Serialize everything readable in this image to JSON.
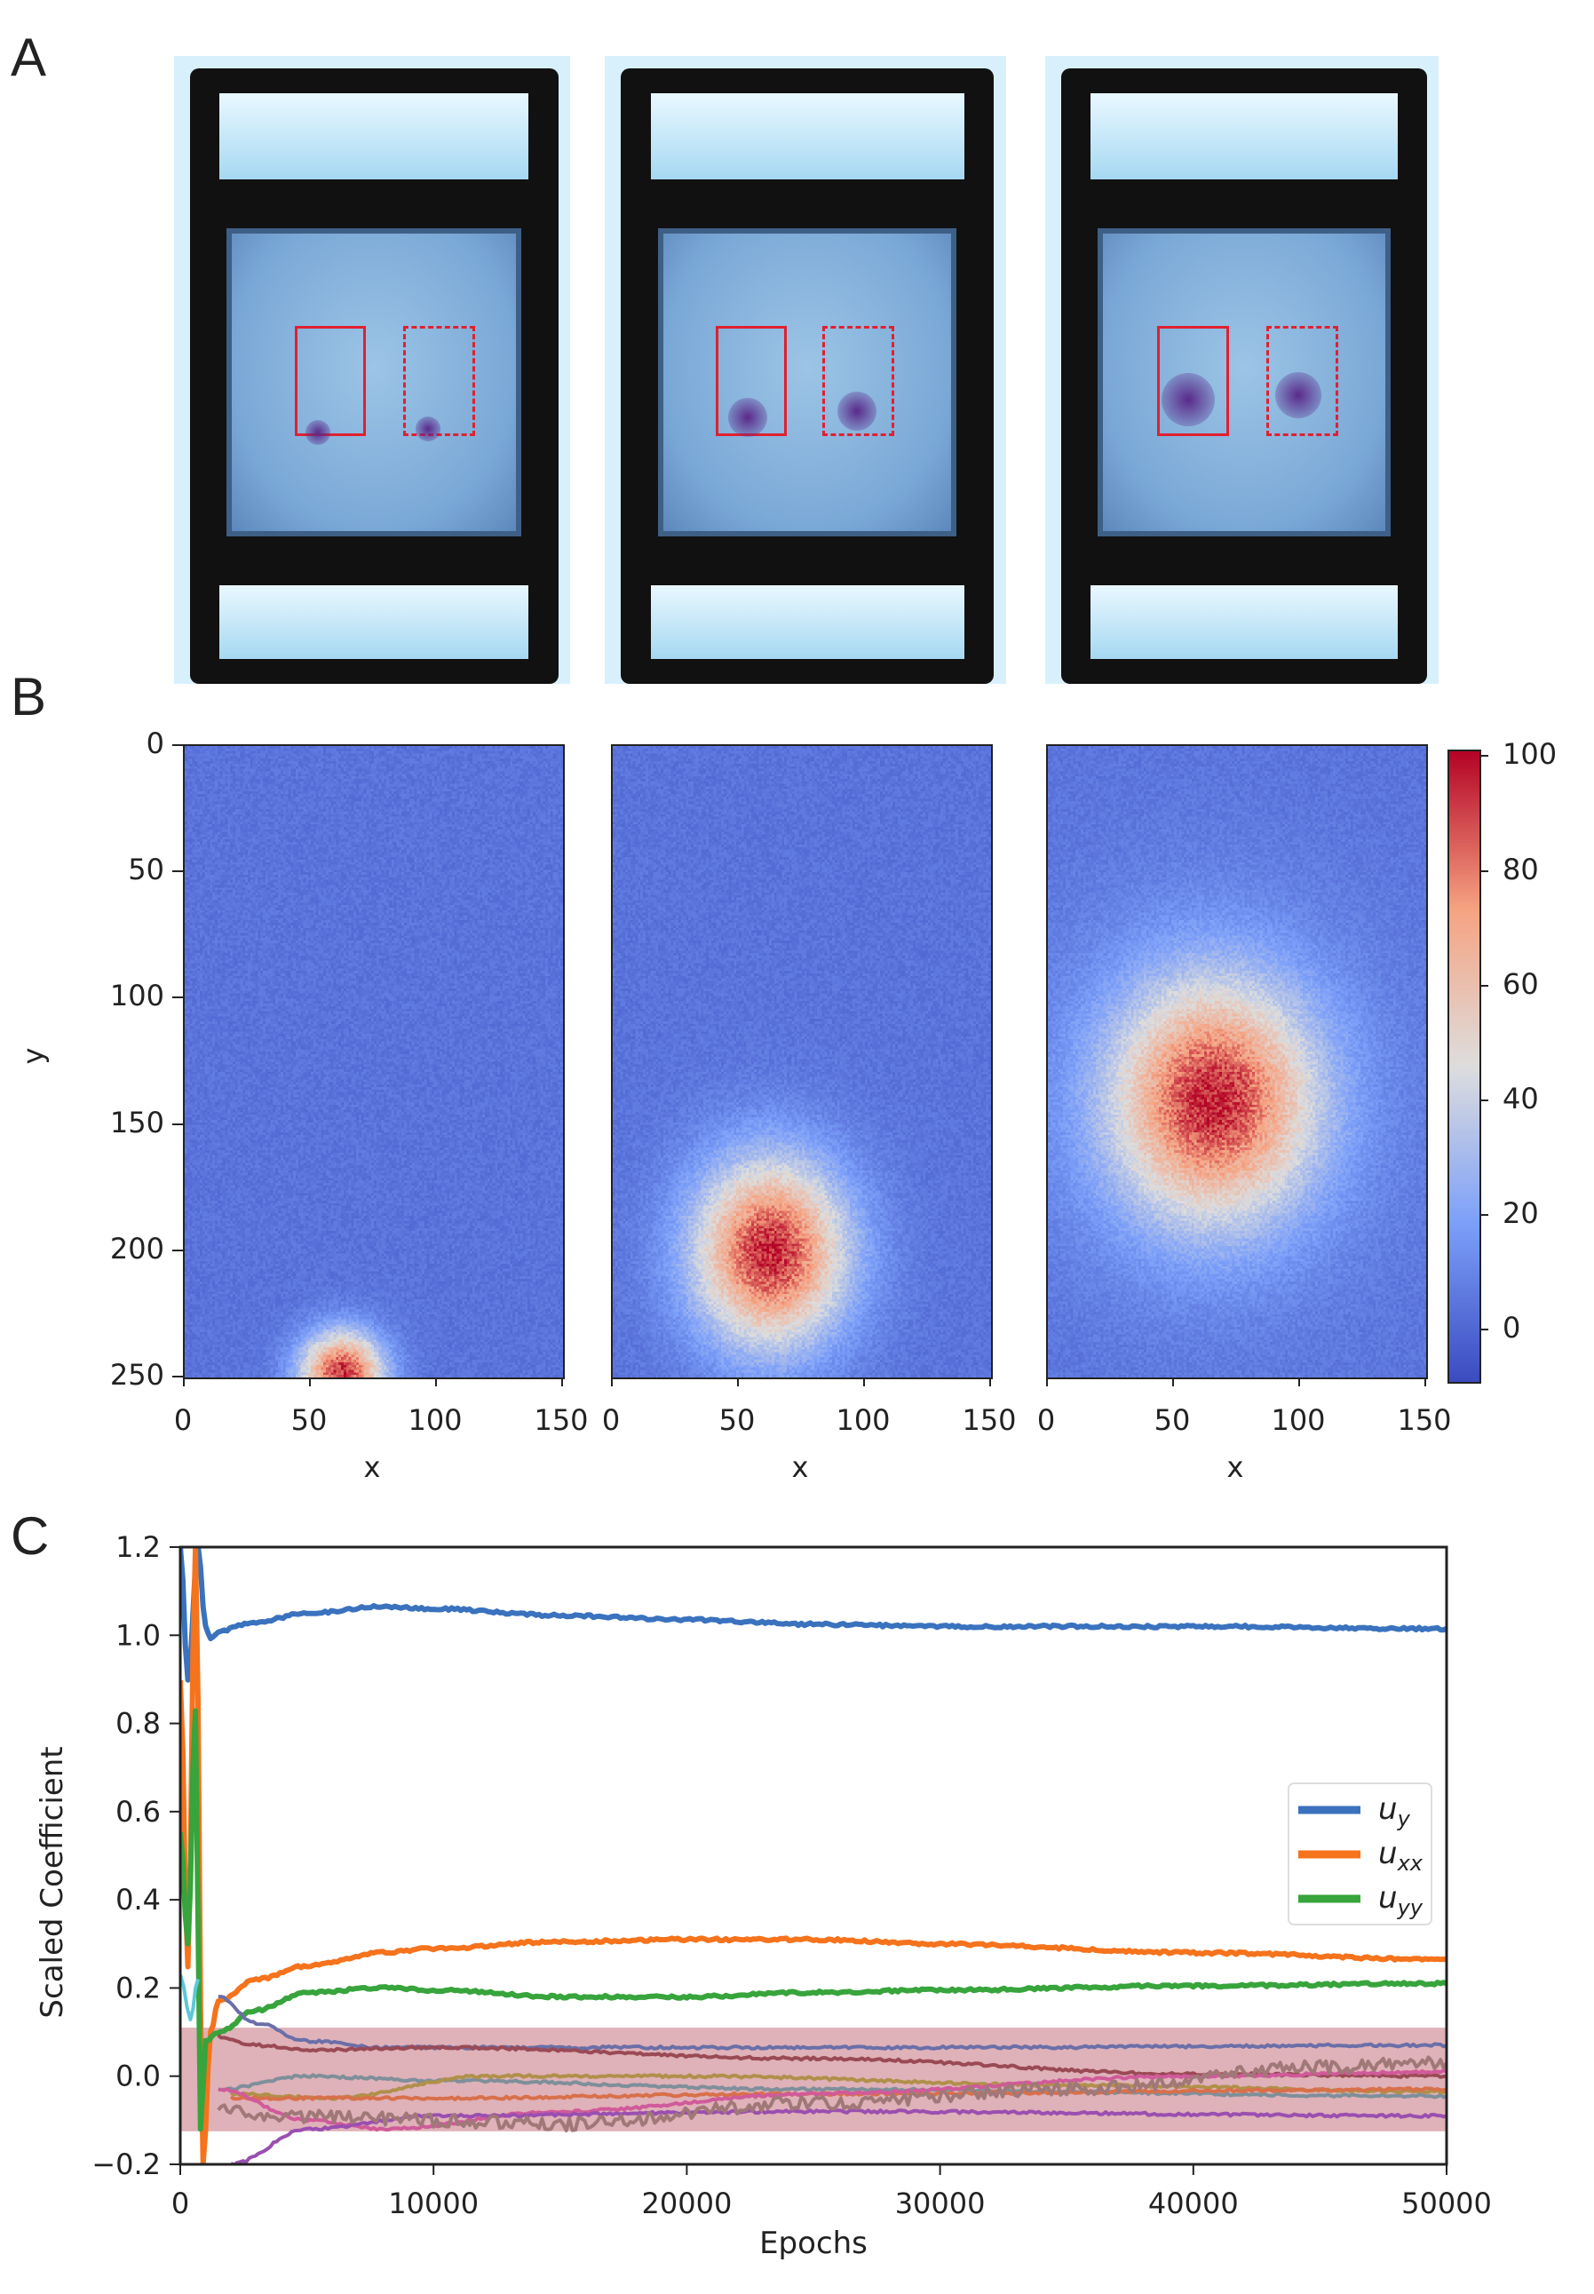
{
  "panel_labels": {
    "a": "A",
    "b": "B",
    "c": "C"
  },
  "panel_a": {
    "photos": [
      {
        "dot": "left-bottom"
      },
      {
        "dot": "mid"
      },
      {
        "dot": "diffuse"
      }
    ]
  },
  "chart_data": [
    {
      "type": "heatmap",
      "panel": "B",
      "xlabel": "x",
      "ylabel": "y",
      "x_ticks": [
        "0",
        "50",
        "100",
        "150"
      ],
      "y_ticks": [
        "0",
        "50",
        "100",
        "150",
        "200",
        "250"
      ],
      "xlim": [
        0,
        150
      ],
      "ylim": [
        250,
        0
      ],
      "colormap": "coolwarm",
      "colorbar": {
        "ticks": [
          "0",
          "20",
          "40",
          "60",
          "80",
          "100"
        ],
        "range": [
          -9,
          101
        ]
      },
      "panels": [
        {
          "peak_x": 62,
          "peak_y": 248,
          "peak_value": 90,
          "spread_x": 10,
          "spread_y": 10
        },
        {
          "peak_x": 62,
          "peak_y": 200,
          "peak_value": 85,
          "spread_x": 18,
          "spread_y": 22
        },
        {
          "peak_x": 65,
          "peak_y": 140,
          "peak_value": 80,
          "spread_x": 24,
          "spread_y": 28
        }
      ]
    },
    {
      "type": "line",
      "panel": "C",
      "xlabel": "Epochs",
      "ylabel": "Scaled Coefficient",
      "xlim": [
        0,
        50000
      ],
      "ylim": [
        -0.2,
        1.2
      ],
      "x_ticks": [
        "0",
        "10000",
        "20000",
        "30000",
        "40000",
        "50000"
      ],
      "y_ticks": [
        "−0.2",
        "0.0",
        "0.2",
        "0.4",
        "0.6",
        "0.8",
        "1.0",
        "1.2"
      ],
      "legend_position": "right",
      "shaded_band": {
        "y0": -0.125,
        "y1": 0.11,
        "color": "#dba8b0"
      },
      "series": [
        {
          "name": "u_y",
          "label_base": "u",
          "label_sub": "y",
          "color": "#3a72be",
          "legend": true,
          "x": [
            0,
            300,
            700,
            1000,
            1200,
            1500,
            3000,
            5000,
            8000,
            10000,
            15000,
            20000,
            25000,
            30000,
            40000,
            50000
          ],
          "y": [
            1.2,
            0.9,
            1.2,
            1.02,
            0.99,
            1.01,
            1.03,
            1.05,
            1.065,
            1.06,
            1.045,
            1.035,
            1.025,
            1.02,
            1.02,
            1.015
          ]
        },
        {
          "name": "u_xx",
          "label_base": "u",
          "label_sub": "xx",
          "color": "#f5731c",
          "legend": true,
          "x": [
            0,
            300,
            600,
            900,
            1200,
            1500,
            3000,
            5000,
            8000,
            10000,
            15000,
            20000,
            25000,
            30000,
            40000,
            50000
          ],
          "y": [
            0.9,
            0.25,
            1.2,
            -0.2,
            0.1,
            0.17,
            0.22,
            0.25,
            0.28,
            0.29,
            0.305,
            0.31,
            0.31,
            0.3,
            0.28,
            0.265
          ]
        },
        {
          "name": "u_yy",
          "label_base": "u",
          "label_sub": "yy",
          "color": "#37a43c",
          "legend": true,
          "x": [
            0,
            300,
            600,
            800,
            1000,
            1500,
            3000,
            5000,
            8000,
            10000,
            15000,
            20000,
            25000,
            30000,
            40000,
            50000
          ],
          "y": [
            0.55,
            0.3,
            0.83,
            -0.12,
            0.08,
            0.1,
            0.15,
            0.19,
            0.2,
            0.195,
            0.18,
            0.18,
            0.19,
            0.195,
            0.205,
            0.21
          ]
        },
        {
          "color": "#6a6fa8",
          "x": [
            1500,
            3000,
            5000,
            8000,
            15000,
            30000,
            50000
          ],
          "y": [
            0.18,
            0.12,
            0.08,
            0.065,
            0.065,
            0.065,
            0.07
          ]
        },
        {
          "color": "#9a4a55",
          "x": [
            1500,
            3000,
            5000,
            10000,
            25000,
            40000,
            50000
          ],
          "y": [
            0.09,
            0.07,
            0.06,
            0.065,
            0.04,
            0.005,
            0.0
          ]
        },
        {
          "color": "#7e8f9a",
          "x": [
            1500,
            5000,
            10000,
            25000,
            50000
          ],
          "y": [
            -0.03,
            0.0,
            -0.01,
            -0.03,
            -0.045
          ]
        },
        {
          "color": "#b0904a",
          "x": [
            2000,
            6000,
            12000,
            20000,
            35000,
            50000
          ],
          "y": [
            -0.04,
            -0.05,
            0.0,
            0.0,
            -0.02,
            -0.035
          ]
        },
        {
          "color": "#d8704a",
          "x": [
            2000,
            10000,
            25000,
            50000
          ],
          "y": [
            -0.05,
            -0.05,
            -0.04,
            -0.03
          ]
        },
        {
          "color": "#d05a9a",
          "x": [
            1500,
            5000,
            8000,
            15000,
            25000,
            40000,
            50000
          ],
          "y": [
            -0.03,
            -0.1,
            -0.12,
            -0.08,
            -0.04,
            0.0,
            0.01
          ]
        },
        {
          "color": "#9a4fb0",
          "x": [
            2000,
            5000,
            10000,
            25000,
            50000
          ],
          "y": [
            -0.2,
            -0.12,
            -0.09,
            -0.08,
            -0.09
          ]
        },
        {
          "color": "#a07878",
          "x": [
            1500,
            5000,
            10000,
            15000,
            25000,
            35000,
            45000,
            50000
          ],
          "y": [
            -0.08,
            -0.09,
            -0.1,
            -0.11,
            -0.06,
            -0.03,
            0.02,
            0.03
          ]
        },
        {
          "color": "#5bc8d8",
          "x": [
            0,
            400,
            700
          ],
          "y": [
            0.23,
            0.13,
            0.22
          ]
        }
      ]
    }
  ]
}
